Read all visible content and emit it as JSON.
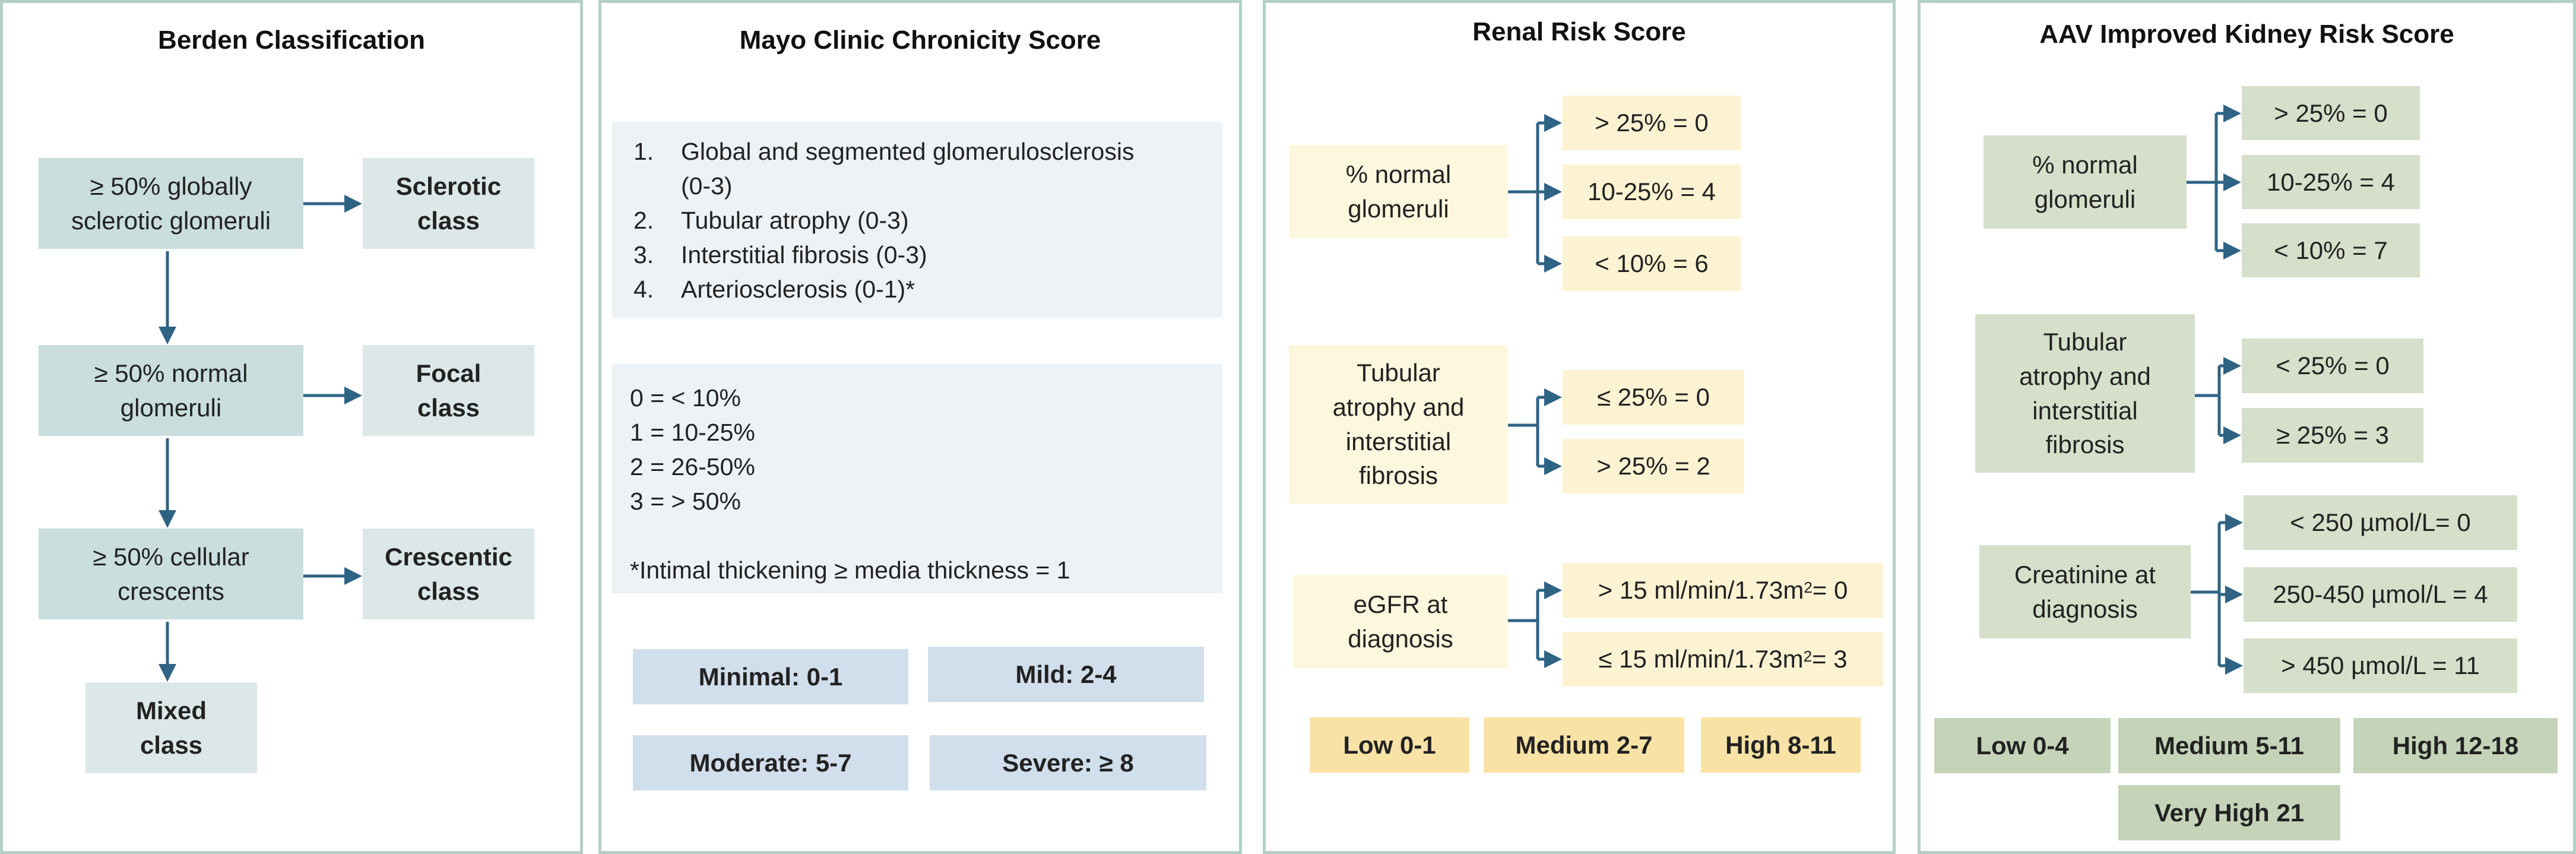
{
  "berden": {
    "title": "Berden Classification",
    "globally_sclerotic": "≥ 50% globally sclerotic glomeruli",
    "normal_glomeruli": "≥ 50% normal glomeruli",
    "cellular_crescents": "≥ 50% cellular crescents",
    "sclerotic_class": "Sclerotic class",
    "focal_class": "Focal class",
    "crescentic_class": "Crescentic class",
    "mixed_class": "Mixed class"
  },
  "mayo": {
    "title": "Mayo Clinic Chronicity Score",
    "items": [
      {
        "num": "1.",
        "text": "Global and segmented glomerulosclerosis",
        "cont": "(0-3)"
      },
      {
        "num": "2.",
        "text": "Tubular atrophy (0-3)"
      },
      {
        "num": "3.",
        "text": "Interstitial fibrosis (0-3)"
      },
      {
        "num": "4.",
        "text": "Arteriosclerosis (0-1)*"
      }
    ],
    "scale": [
      "0 = < 10%",
      "1 = 10-25%",
      "2 = 26-50%",
      "3 = > 50%"
    ],
    "footnote": "*Intimal thickening ≥ media thickness = 1",
    "categories": [
      "Minimal: 0-1",
      "Mild: 2-4",
      "Moderate: 5-7",
      "Severe: ≥ 8"
    ]
  },
  "renal": {
    "title": "Renal Risk Score",
    "normal_glomeruli": "% normal glomeruli",
    "ng_options": [
      "> 25% = 0",
      "10-25% = 4",
      "< 10% = 6"
    ],
    "tubular": "Tubular atrophy and interstitial fibrosis",
    "tubular_options": [
      "≤ 25% = 0",
      "> 25% = 2"
    ],
    "egfr": "eGFR at diagnosis",
    "egfr_opt1_pre": "> 15 ml/min/1.73m",
    "egfr_opt1_post": " = 0",
    "egfr_opt2_pre": "≤ 15 ml/min/1.73m",
    "egfr_opt2_post": " = 3",
    "egfr_sup": "2",
    "risk": [
      "Low 0-1",
      "Medium 2-7",
      "High 8-11"
    ]
  },
  "aav": {
    "title": "AAV Improved Kidney Risk Score",
    "normal_glomeruli": "% normal glomeruli",
    "ng_options": [
      "> 25% = 0",
      "10-25% = 4",
      "< 10% = 7"
    ],
    "tubular": "Tubular atrophy and interstitial fibrosis",
    "tubular_options": [
      "< 25% = 0",
      "≥ 25% = 3"
    ],
    "creatinine": "Creatinine at diagnosis",
    "creatinine_options": [
      "< 250 µmol/L= 0",
      "250-450 µmol/L = 4",
      "> 450 µmol/L = 11"
    ],
    "risk": [
      "Low 0-4",
      "Medium 5-11",
      "High 12-18",
      "Very High 21"
    ]
  },
  "colors": {
    "panel_border": "#b3cfc8",
    "arrow": "#2f6384",
    "teal": "#c9dedd",
    "cream": "#fdf7de",
    "gold": "#f8e2a6",
    "green": "#d5dfca",
    "blue": "#d1deeb"
  }
}
